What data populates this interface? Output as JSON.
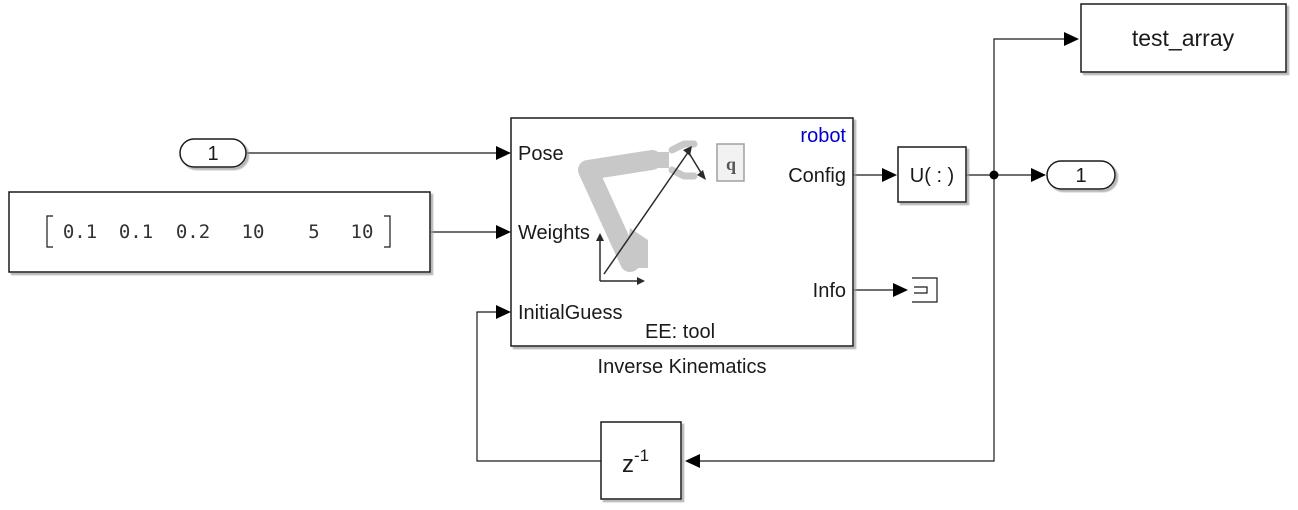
{
  "inport": {
    "number": "1"
  },
  "constant": {
    "values": [
      "0.1",
      "0.1",
      "0.2",
      "10",
      "5",
      "10"
    ]
  },
  "ik_block": {
    "name": "Inverse Kinematics",
    "robot_label": "robot",
    "inputs": {
      "pose": "Pose",
      "weights": "Weights",
      "initial_guess": "InitialGuess"
    },
    "outputs": {
      "config": "Config",
      "info": "Info"
    },
    "ee_label": "EE: tool",
    "q_label": "q"
  },
  "reshape": {
    "label": "U( : )"
  },
  "outport": {
    "number": "1"
  },
  "to_workspace": {
    "label": "test_array"
  },
  "unit_delay": {
    "base": "z",
    "exponent": "-1"
  },
  "colors": {
    "robot_label": "#0000cc",
    "icon_gray": "#c8c8c8"
  }
}
